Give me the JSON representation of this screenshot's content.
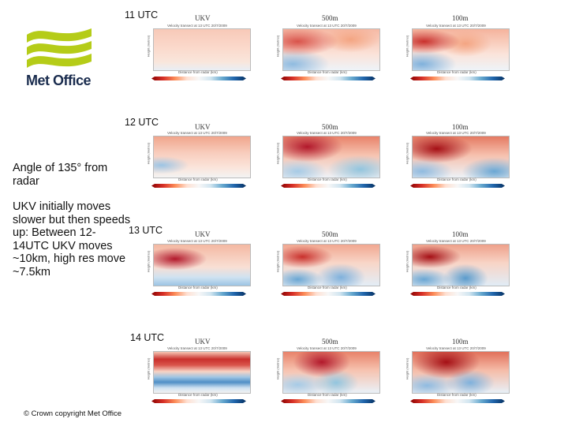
{
  "logo": {
    "text": "Met Office",
    "color": "#b5cc18"
  },
  "side": {
    "angle_text": "Angle of 135° from radar",
    "description": "UKV initially moves slower but then speeds up: Between 12-14UTC UKV moves ~10km, high res move ~7.5km"
  },
  "footer": "© Crown copyright Met Office",
  "columns": [
    "UKV",
    "500m",
    "100m"
  ],
  "rows": [
    {
      "time": "11 UTC"
    },
    {
      "time": "12 UTC"
    },
    {
      "time": "13 UTC"
    },
    {
      "time": "14 UTC"
    }
  ],
  "panel_text": {
    "title": "Velocity transect at 13 UTC 20/7/2009",
    "xlabel": "Distance from radar (km)",
    "ylabel": "Height (metres)"
  }
}
